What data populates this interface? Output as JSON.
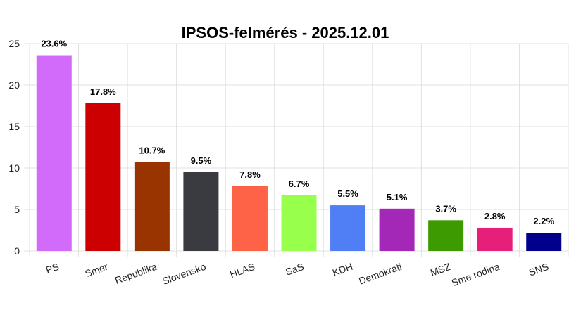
{
  "chart_data": {
    "type": "bar",
    "title": "IPSOS-felmérés - 2025.12.01",
    "xlabel": "",
    "ylabel": "",
    "ylim": [
      0,
      25
    ],
    "yticks": [
      0,
      5,
      10,
      15,
      20,
      25
    ],
    "grid": true,
    "legend": "none",
    "categories": [
      "PS",
      "Smer",
      "Republika",
      "Slovensko",
      "HLAS",
      "SaS",
      "KDH",
      "Demokrati",
      "MSZ",
      "Sme rodina",
      "SNS"
    ],
    "values": [
      23.6,
      17.8,
      10.7,
      9.5,
      7.8,
      6.7,
      5.5,
      5.1,
      3.7,
      2.8,
      2.2
    ],
    "data_labels": [
      "23.6%",
      "17.8%",
      "10.7%",
      "9.5%",
      "7.8%",
      "6.7%",
      "5.5%",
      "5.1%",
      "3.7%",
      "2.8%",
      "2.2%"
    ],
    "colors": [
      "#d36bfa",
      "#cc0000",
      "#993300",
      "#3a3b40",
      "#ff6347",
      "#99ff4d",
      "#4f7ef5",
      "#a428b8",
      "#3d9a00",
      "#e6207a",
      "#00008b"
    ]
  }
}
